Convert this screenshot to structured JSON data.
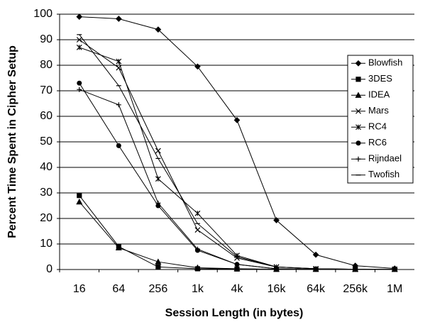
{
  "chart_data": {
    "type": "line",
    "x_label": "Session Length (in bytes)",
    "y_label": "Percent Time Spent in Cipher Setup",
    "categories": [
      "16",
      "64",
      "256",
      "1k",
      "4k",
      "16k",
      "64k",
      "256k",
      "1M"
    ],
    "ylim": [
      0,
      100
    ],
    "yticks": [
      0,
      10,
      20,
      30,
      40,
      50,
      60,
      70,
      80,
      90,
      100
    ],
    "grid": true,
    "legend": "right",
    "series": [
      {
        "name": "Blowfish",
        "color": "#000000",
        "marker": "diamond",
        "values": [
          99,
          98.2,
          94,
          79.5,
          58.5,
          19.3,
          5.8,
          1.5,
          0.4
        ]
      },
      {
        "name": "3DES",
        "color": "#000000",
        "marker": "square",
        "values": [
          29,
          9,
          1,
          0.3,
          0.2,
          0.1,
          0.1,
          0.1,
          0.1
        ]
      },
      {
        "name": "IDEA",
        "color": "#000000",
        "marker": "triangle",
        "values": [
          26.5,
          8.5,
          3,
          0.7,
          0.3,
          0.1,
          0.1,
          0.1,
          0.1
        ]
      },
      {
        "name": "Mars",
        "color": "#000000",
        "marker": "x",
        "values": [
          90,
          79,
          46.5,
          15.5,
          4.5,
          1,
          0.3,
          0.1,
          0.1
        ]
      },
      {
        "name": "RC4",
        "color": "#000000",
        "marker": "star",
        "values": [
          87,
          81.5,
          35.5,
          22,
          5.5,
          1,
          0.3,
          0.1,
          0.1
        ]
      },
      {
        "name": "RC6",
        "color": "#000000",
        "marker": "circle",
        "values": [
          73,
          48.5,
          25,
          7.5,
          2,
          0.3,
          0.1,
          0.1,
          0.1
        ]
      },
      {
        "name": "Rijndael",
        "color": "#000000",
        "marker": "plus",
        "values": [
          70.5,
          64.5,
          26,
          8,
          2,
          0.3,
          0.1,
          0.1,
          0.1
        ]
      },
      {
        "name": "Twofish",
        "color": "#000000",
        "marker": "dash",
        "values": [
          92,
          72,
          43.5,
          18,
          5,
          1,
          0.3,
          0.1,
          0.1
        ]
      }
    ]
  }
}
